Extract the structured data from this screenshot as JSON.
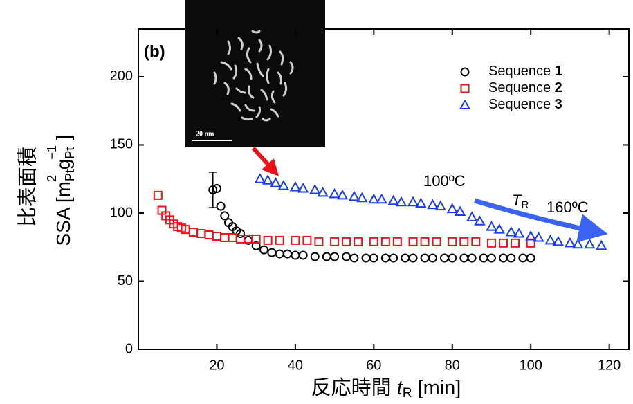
{
  "chart_data": {
    "type": "scatter",
    "panel_label": "(b)",
    "x_label": {
      "main": "反応時間 ",
      "var": "t",
      "sub": "R",
      "unit": " [min]"
    },
    "y_label": {
      "line1": "比表面積",
      "line2": [
        "SSA [m",
        "Pt",
        "2",
        " g",
        "Pt",
        "−1",
        " ]"
      ]
    },
    "annotations": {
      "temp_low": "100ºC",
      "temp_high": "160ºC",
      "tr_var": "T",
      "tr_sub": "R",
      "scale_bar": "20 nm"
    },
    "xlim": [
      0,
      125
    ],
    "ylim": [
      0,
      235
    ],
    "xticks": [
      20,
      40,
      60,
      80,
      100,
      120
    ],
    "yticks": [
      0,
      50,
      100,
      150,
      200
    ],
    "series": [
      {
        "name": "Sequence 1",
        "marker": "circle",
        "color": "#000000",
        "x": [
          19,
          20,
          21,
          22,
          23,
          24,
          25,
          26,
          28,
          30,
          32,
          34,
          36,
          38,
          40,
          42,
          45,
          48,
          50,
          53,
          55,
          58,
          60,
          63,
          65,
          68,
          70,
          73,
          75,
          78,
          80,
          83,
          85,
          88,
          90,
          93,
          95,
          98,
          100
        ],
        "values": [
          117,
          118,
          105,
          98,
          93,
          90,
          87,
          85,
          80,
          76,
          73,
          71,
          70,
          70,
          69,
          69,
          68,
          68,
          68,
          68,
          67,
          67,
          67,
          67,
          67,
          67,
          67,
          67,
          67,
          67,
          67,
          67,
          67,
          67,
          67,
          67,
          67,
          67,
          67
        ],
        "errors": [
          13,
          null,
          null,
          null,
          null,
          null,
          null,
          null,
          null,
          null,
          null,
          null,
          null,
          null,
          null,
          null,
          null,
          null,
          null,
          null,
          null,
          null,
          null,
          null,
          null,
          null,
          null,
          null,
          null,
          null,
          null,
          null,
          null,
          null,
          null,
          null,
          null,
          null,
          null
        ]
      },
      {
        "name": "Sequence 2",
        "marker": "square",
        "color": "#e8141b",
        "x": [
          5,
          6,
          7,
          8,
          9,
          10,
          11,
          12,
          14,
          16,
          18,
          20,
          22,
          24,
          26,
          28,
          30,
          33,
          36,
          40,
          43,
          46,
          50,
          53,
          56,
          60,
          63,
          66,
          70,
          73,
          76,
          80,
          83,
          86,
          90,
          93,
          96,
          100
        ],
        "values": [
          113,
          102,
          98,
          95,
          92,
          90,
          89,
          88,
          86,
          85,
          84,
          83,
          82,
          82,
          81,
          81,
          81,
          80,
          80,
          80,
          80,
          79,
          79,
          79,
          79,
          79,
          79,
          79,
          79,
          79,
          79,
          79,
          79,
          79,
          78,
          78,
          78,
          78
        ]
      },
      {
        "name": "Sequence 3",
        "marker": "triangle",
        "color": "#1a3cf0",
        "x": [
          31,
          33,
          35,
          37,
          40,
          42,
          45,
          47,
          50,
          52,
          55,
          57,
          60,
          62,
          65,
          67,
          70,
          72,
          75,
          77,
          80,
          82,
          85,
          87,
          90,
          92,
          95,
          97,
          100,
          102,
          105,
          107,
          110,
          112,
          115,
          118
        ],
        "values": [
          125,
          124,
          122,
          120,
          119,
          118,
          117,
          115,
          114,
          113,
          112,
          111,
          110,
          110,
          109,
          108,
          108,
          107,
          106,
          105,
          103,
          101,
          97,
          94,
          90,
          88,
          86,
          85,
          83,
          82,
          80,
          79,
          78,
          77,
          77,
          76
        ]
      }
    ]
  }
}
